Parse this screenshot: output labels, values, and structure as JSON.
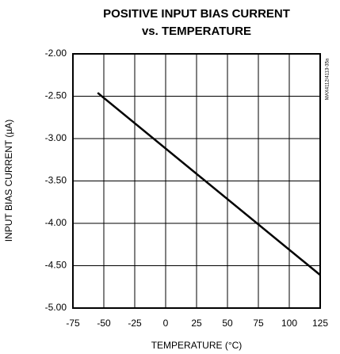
{
  "chart_data": {
    "type": "line",
    "title_lines": [
      "POSITIVE INPUT BIAS CURRENT",
      "vs. TEMPERATURE"
    ],
    "xlabel": "TEMPERATURE (°C)",
    "ylabel": "INPUT BIAS CURRENT (µA)",
    "annotation": "MAX4112/4113-35a",
    "x": [
      -55,
      125
    ],
    "series": [
      {
        "color": "#000000",
        "values": [
          -2.46,
          -4.61
        ]
      }
    ],
    "xlim": [
      -75,
      125
    ],
    "xticks": [
      -75,
      -50,
      -25,
      0,
      25,
      50,
      75,
      100,
      125
    ],
    "ylim": [
      -5,
      -2
    ],
    "yticks": [
      {
        "value": -2,
        "label": "-2.00"
      },
      {
        "value": -2.5,
        "label": "-2.50"
      },
      {
        "value": -3,
        "label": "-3.00"
      },
      {
        "value": -3.5,
        "label": "-3.50"
      },
      {
        "value": -4,
        "label": "-4.00"
      },
      {
        "value": -4.5,
        "label": "-4.50"
      },
      {
        "value": -5,
        "label": "-5.00"
      }
    ],
    "grid": true
  }
}
